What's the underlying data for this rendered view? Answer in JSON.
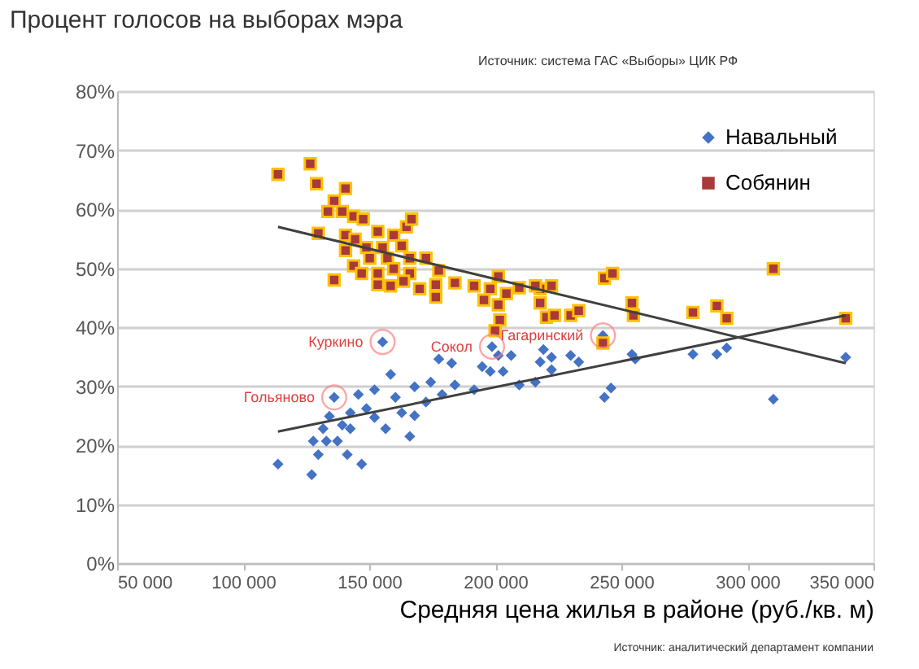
{
  "chart_data": {
    "type": "scatter",
    "title": "Процент голосов на выборах мэра",
    "xlabel": "Средняя цена жилья в районе (руб./кв. м)",
    "xlim": [
      50000,
      350000
    ],
    "xticks": [
      {
        "value": 50000,
        "label": "50 000"
      },
      {
        "value": 100000,
        "label": "100 000"
      },
      {
        "value": 150000,
        "label": "150 000"
      },
      {
        "value": 200000,
        "label": "200 000"
      },
      {
        "value": 250000,
        "label": "250 000"
      },
      {
        "value": 300000,
        "label": "300 000"
      },
      {
        "value": 350000,
        "label": "350 000"
      }
    ],
    "ylim": [
      0,
      80
    ],
    "yticks": [
      {
        "value": 0,
        "label": "0%"
      },
      {
        "value": 10,
        "label": "10%"
      },
      {
        "value": 20,
        "label": "20%"
      },
      {
        "value": 30,
        "label": "30%"
      },
      {
        "value": 40,
        "label": "40%"
      },
      {
        "value": 50,
        "label": "50%"
      },
      {
        "value": 60,
        "label": "60%"
      },
      {
        "value": 70,
        "label": "70%"
      },
      {
        "value": 80,
        "label": "80%"
      }
    ],
    "grid": "y",
    "legend": "top right",
    "series": [
      {
        "name": "Навальный",
        "color": "#4472c4",
        "marker": "diamond",
        "x": [
          113800,
          127200,
          129800,
          141300,
          147000,
          136100,
          155300,
          133000,
          137400,
          131700,
          139300,
          142500,
          145700,
          148900,
          152100,
          152100,
          156500,
          158500,
          160400,
          162900,
          166100,
          168000,
          168000,
          172500,
          174400,
          177600,
          178900,
          182700,
          184000,
          191600,
          194800,
          198000,
          198700,
          201200,
          203100,
          209500,
          215900,
          206300,
          219100,
          222300,
          217800,
          222300,
          229900,
          233100,
          243300,
          245900,
          242700,
          254200,
          255500,
          278400,
          287900,
          291800,
          310300,
          339000,
          127800,
          134200,
          142500
        ],
        "values": [
          16.8,
          15.0,
          18.4,
          18.4,
          16.8,
          28.1,
          37.5,
          20.7,
          20.7,
          22.8,
          23.4,
          25.5,
          28.6,
          26.2,
          29.4,
          24.7,
          22.8,
          32.0,
          28.1,
          25.5,
          21.5,
          29.9,
          25.0,
          27.3,
          30.7,
          34.6,
          28.6,
          33.9,
          30.2,
          29.4,
          33.3,
          32.5,
          36.7,
          35.2,
          32.5,
          30.2,
          30.7,
          35.2,
          36.2,
          34.9,
          34.1,
          32.8,
          35.2,
          34.1,
          28.1,
          29.7,
          38.6,
          35.4,
          34.6,
          35.4,
          35.4,
          36.5,
          27.8,
          34.9,
          20.7,
          24.9,
          22.8
        ]
      },
      {
        "name": "Собянин",
        "color": "#a83a3a",
        "marker": "square",
        "x": [
          113800,
          126600,
          129100,
          140600,
          136100,
          133600,
          139300,
          143800,
          147600,
          129800,
          140600,
          144400,
          153400,
          159700,
          164800,
          166800,
          140600,
          148900,
          155300,
          162900,
          143800,
          150200,
          157200,
          166100,
          172500,
          147000,
          153400,
          159700,
          166100,
          177600,
          136100,
          153400,
          158500,
          163600,
          170000,
          176400,
          184000,
          191600,
          198000,
          201200,
          204400,
          176400,
          195500,
          201200,
          217800,
          201800,
          199900,
          209500,
          215900,
          222300,
          217800,
          220300,
          223500,
          229900,
          233100,
          243300,
          246500,
          242700,
          254200,
          254800,
          278400,
          287900,
          291800,
          310300,
          339000
        ],
        "values": [
          65.9,
          67.7,
          64.3,
          63.5,
          61.4,
          59.6,
          59.6,
          58.8,
          58.3,
          55.9,
          55.6,
          54.9,
          56.2,
          55.6,
          57.0,
          58.3,
          53.0,
          53.5,
          53.5,
          53.8,
          50.4,
          51.7,
          51.7,
          51.7,
          51.7,
          49.1,
          49.1,
          49.9,
          49.1,
          49.6,
          48.0,
          47.2,
          47.0,
          47.8,
          46.5,
          47.2,
          47.5,
          47.0,
          46.5,
          48.6,
          45.7,
          45.1,
          44.6,
          43.8,
          46.5,
          41.2,
          39.4,
          46.7,
          47.0,
          47.0,
          44.1,
          41.7,
          42.0,
          42.0,
          42.8,
          48.3,
          49.1,
          37.3,
          44.1,
          42.0,
          42.5,
          43.6,
          41.5,
          49.9,
          41.5
        ]
      },
      {
        "type": "line",
        "color": "#404040",
        "x": [
          113800,
          339000
        ],
        "values": [
          57.0,
          33.9
        ]
      },
      {
        "type": "line",
        "color": "#404040",
        "x": [
          113800,
          339000
        ],
        "values": [
          22.3,
          42.0
        ]
      }
    ],
    "annotations": [
      {
        "text": "Гольяново",
        "x": 136100,
        "y": 28.1
      },
      {
        "text": "Куркино",
        "x": 155300,
        "y": 37.5
      },
      {
        "text": "Сокол",
        "x": 198700,
        "y": 36.7
      },
      {
        "text": "Гагаринский",
        "x": 242700,
        "y": 38.6
      },
      "Источник: система ГАС «Выборы» ЦИК РФ",
      "Источник: аналитический департамент компании"
    ]
  }
}
